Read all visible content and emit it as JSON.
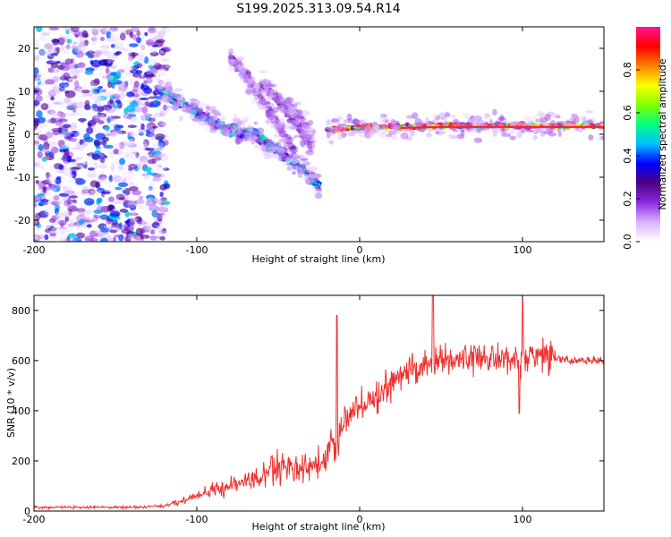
{
  "title": "S199.2025.313.09.54.R14",
  "chart_data": [
    {
      "type": "heatmap",
      "xlabel": "Height of straight line (km)",
      "ylabel": "Frequency (Hz)",
      "xlim": [
        -200,
        150
      ],
      "ylim": [
        -25,
        25
      ],
      "xticks": [
        -200,
        -100,
        0,
        100
      ],
      "yticks": [
        -20,
        -10,
        0,
        10,
        20
      ],
      "colorbar": {
        "label": "Normalized spectral amplitude",
        "ticks": [
          "0.0",
          "0.2",
          "0.4",
          "0.6",
          "0.8"
        ],
        "tick_values": [
          0,
          0.2,
          0.4,
          0.6,
          0.8
        ],
        "range": [
          0,
          1
        ],
        "colormap": [
          "#ffffff",
          "#d9b3ff",
          "#8a2be2",
          "#4b0082",
          "#0000ff",
          "#00bfff",
          "#00ff80",
          "#80ff00",
          "#ffff00",
          "#ff8000",
          "#ff0000",
          "#ff1493"
        ]
      },
      "features": [
        {
          "name": "broadband noise",
          "x_range": [
            -200,
            -118
          ],
          "f_range": [
            -25,
            25
          ],
          "amplitude": 0.15
        },
        {
          "name": "main descending trace",
          "x": [
            -125,
            -110,
            -95,
            -80,
            -65,
            -50,
            -35,
            -25
          ],
          "f": [
            11,
            7,
            4,
            1,
            0,
            -4,
            -8,
            -12
          ],
          "amplitude": 0.3
        },
        {
          "name": "parallel trace 1",
          "x": [
            -80,
            -70,
            -60,
            -50,
            -40
          ],
          "f": [
            18,
            14,
            8,
            2,
            -4
          ],
          "amplitude": 0.15
        },
        {
          "name": "parallel trace 2",
          "x": [
            -60,
            -50,
            -40,
            -30
          ],
          "f": [
            12,
            8,
            3,
            -2
          ],
          "amplitude": 0.15
        },
        {
          "name": "parallel trace 3",
          "x": [
            -45,
            -35,
            -28
          ],
          "f": [
            7,
            3,
            0
          ],
          "amplitude": 0.12
        },
        {
          "name": "steady band",
          "x": [
            -20,
            0,
            50,
            100,
            150
          ],
          "f": [
            1,
            1.5,
            2,
            2,
            2
          ],
          "amplitude": 0.5
        }
      ]
    },
    {
      "type": "line",
      "xlabel": "Height of straight line (km)",
      "ylabel": "SNR (10 * v/v)",
      "xlim": [
        -200,
        150
      ],
      "ylim": [
        0,
        860
      ],
      "xticks": [
        -200,
        -100,
        0,
        100
      ],
      "yticks": [
        0,
        200,
        400,
        600,
        800
      ],
      "series": [
        {
          "name": "SNR",
          "color": "#ee3030",
          "x": [
            -200,
            -180,
            -160,
            -140,
            -120,
            -110,
            -100,
            -90,
            -80,
            -70,
            -60,
            -50,
            -40,
            -30,
            -20,
            -17,
            -14,
            -12,
            -10,
            -5,
            0,
            5,
            10,
            20,
            30,
            40,
            50,
            60,
            70,
            80,
            90,
            100,
            110,
            120,
            130,
            140,
            150
          ],
          "y": [
            15,
            15,
            15,
            15,
            20,
            40,
            60,
            80,
            100,
            120,
            130,
            180,
            170,
            180,
            200,
            300,
            200,
            300,
            350,
            390,
            410,
            430,
            450,
            520,
            560,
            590,
            600,
            610,
            610,
            620,
            610,
            600,
            620,
            610,
            600,
            600,
            600
          ],
          "peaks": [
            {
              "x": -14,
              "y": 780
            },
            {
              "x": 45,
              "y": 860
            },
            {
              "x": 100,
              "y": 840
            },
            {
              "x": 98,
              "y": 390
            }
          ]
        }
      ]
    }
  ]
}
